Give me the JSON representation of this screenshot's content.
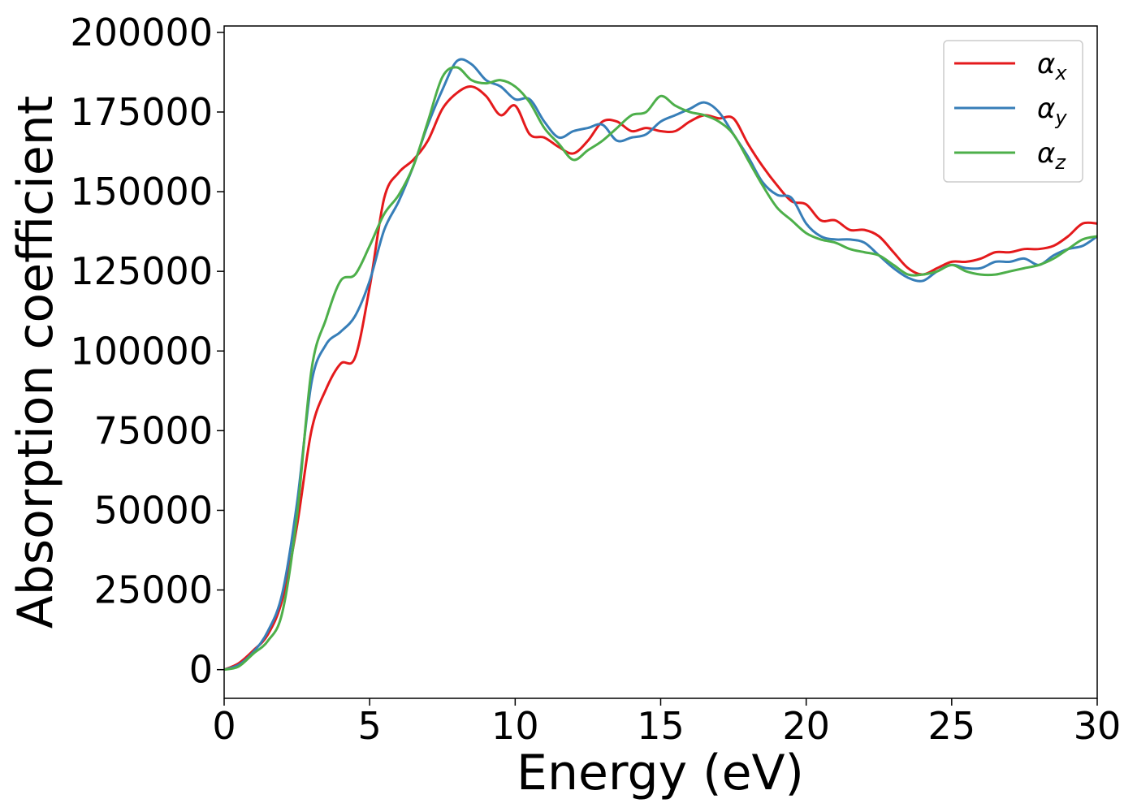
{
  "chart_data": {
    "type": "line",
    "xlabel": "Energy (eV)",
    "ylabel": "Absorption coefficient",
    "xlim": [
      0,
      30
    ],
    "ylim": [
      -9000,
      202000
    ],
    "xticks": [
      0,
      5,
      10,
      15,
      20,
      25,
      30
    ],
    "yticks": [
      0,
      25000,
      50000,
      75000,
      100000,
      125000,
      150000,
      175000,
      200000
    ],
    "grid": false,
    "legend_position": "top-right",
    "x": [
      0,
      0.5,
      1,
      1.5,
      2,
      2.5,
      3,
      3.5,
      4,
      4.5,
      5,
      5.5,
      6,
      6.5,
      7,
      7.5,
      8,
      8.5,
      9,
      9.5,
      10,
      10.5,
      11,
      11.5,
      12,
      12.5,
      13,
      13.5,
      14,
      14.5,
      15,
      15.5,
      16,
      16.5,
      17,
      17.5,
      18,
      18.5,
      19,
      19.5,
      20,
      20.5,
      21,
      21.5,
      22,
      22.5,
      23,
      23.5,
      24,
      24.5,
      25,
      25.5,
      26,
      26.5,
      27,
      27.5,
      28,
      28.5,
      29,
      29.5,
      30
    ],
    "series": [
      {
        "name": "α",
        "subscript": "x",
        "color": "#e41a1c",
        "values": [
          0,
          2000,
          6000,
          11000,
          22000,
          45000,
          75000,
          88000,
          96000,
          98000,
          120000,
          148000,
          156000,
          160000,
          166000,
          176000,
          181000,
          183000,
          180000,
          174000,
          177000,
          168000,
          167000,
          164000,
          162000,
          166000,
          172000,
          172000,
          169000,
          170000,
          169000,
          169000,
          172000,
          174000,
          173000,
          173000,
          165000,
          158000,
          152000,
          147000,
          146000,
          141000,
          141000,
          138000,
          138000,
          136000,
          131000,
          126000,
          124000,
          126000,
          128000,
          128000,
          129000,
          131000,
          131000,
          132000,
          132000,
          133000,
          136000,
          140000,
          140000
        ]
      },
      {
        "name": "α",
        "subscript": "y",
        "color": "#377eb8",
        "values": [
          0,
          1500,
          5500,
          12000,
          24000,
          52000,
          90000,
          102000,
          106000,
          111000,
          122000,
          138000,
          147000,
          158000,
          171000,
          182000,
          191000,
          190000,
          185000,
          183000,
          179000,
          179000,
          172000,
          167000,
          169000,
          170000,
          171000,
          166000,
          167000,
          168000,
          172000,
          174000,
          176000,
          178000,
          175000,
          168000,
          161000,
          153000,
          149000,
          148000,
          140000,
          136000,
          135000,
          135000,
          134000,
          130000,
          126000,
          123000,
          122000,
          125000,
          127000,
          126000,
          126000,
          128000,
          128000,
          129000,
          127000,
          130000,
          132000,
          133000,
          136000
        ]
      },
      {
        "name": "α",
        "subscript": "z",
        "color": "#4daf4a",
        "values": [
          0,
          1000,
          5000,
          9000,
          18000,
          48000,
          94000,
          110000,
          122000,
          124000,
          133000,
          143000,
          149000,
          158000,
          172000,
          186000,
          189000,
          185000,
          184000,
          185000,
          183000,
          178000,
          170000,
          165000,
          160000,
          163000,
          166000,
          170000,
          174000,
          175000,
          180000,
          177000,
          175000,
          174000,
          172000,
          168000,
          160000,
          152000,
          145000,
          141000,
          137000,
          135000,
          134000,
          132000,
          131000,
          130000,
          127000,
          124000,
          124000,
          125000,
          127000,
          125000,
          124000,
          124000,
          125000,
          126000,
          127000,
          129000,
          132000,
          135000,
          136000
        ]
      }
    ]
  }
}
